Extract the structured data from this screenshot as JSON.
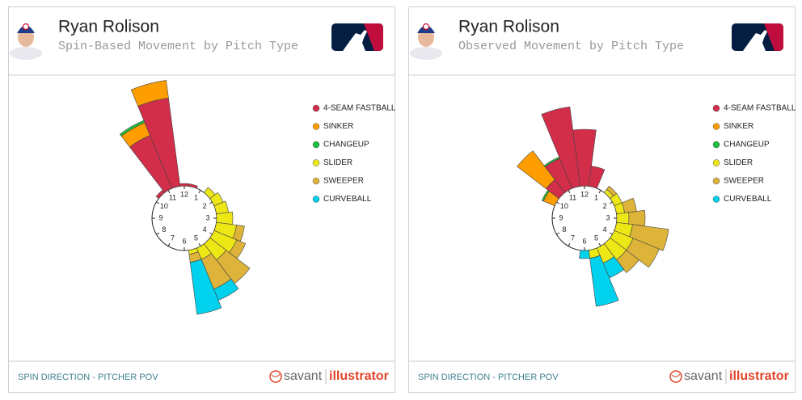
{
  "branding": {
    "savant": "savant",
    "illustrator": "illustrator"
  },
  "chart_data": [
    {
      "type": "polar-bar",
      "title": "Ryan Rolison",
      "subtitle": "Spin-Based Movement by Pitch Type",
      "caption": "SPIN DIRECTION - PITCHER POV",
      "x": [
        10.5,
        11,
        11.5,
        12,
        12.5,
        1.5,
        2,
        2.5,
        3,
        3.5,
        4,
        4.5,
        5,
        5.5
      ],
      "xlim": [
        0,
        12
      ],
      "xticks": [
        12,
        1,
        2,
        3,
        4,
        5,
        6,
        7,
        8,
        9,
        10,
        11
      ],
      "rlim": [
        0,
        140
      ],
      "series": [
        {
          "name": "4-SEAM FASTBALL",
          "color": "#d22d49",
          "values": [
            4,
            71,
            110,
            3,
            3,
            null,
            null,
            null,
            null,
            null,
            null,
            null,
            null,
            null
          ]
        },
        {
          "name": "SINKER",
          "color": "#fe9d00",
          "values": [
            null,
            17,
            22,
            null,
            null,
            null,
            null,
            null,
            null,
            null,
            null,
            null,
            null,
            null
          ]
        },
        {
          "name": "CHANGEUP",
          "color": "#1dbe3a",
          "values": [
            null,
            3,
            null,
            null,
            null,
            null,
            null,
            null,
            null,
            null,
            null,
            null,
            null,
            null
          ]
        },
        {
          "name": "SLIDER",
          "color": "#eee716",
          "values": [
            null,
            null,
            null,
            null,
            null,
            8,
            12,
            15,
            20,
            25,
            30,
            25,
            15,
            5
          ]
        },
        {
          "name": "SWEEPER",
          "color": "#ddb33a",
          "values": [
            null,
            null,
            null,
            null,
            null,
            null,
            null,
            null,
            null,
            10,
            12,
            37,
            40,
            10
          ]
        },
        {
          "name": "CURVEBALL",
          "color": "#00d1ed",
          "values": [
            null,
            null,
            null,
            null,
            null,
            null,
            null,
            null,
            null,
            null,
            null,
            null,
            15,
            65
          ]
        }
      ]
    },
    {
      "type": "polar-bar",
      "title": "Ryan Rolison",
      "subtitle": "Observed Movement by Pitch Type",
      "caption": "SPIN DIRECTION - PITCHER POV",
      "x": [
        10,
        10.5,
        11,
        11.5,
        12,
        12.5,
        1.5,
        2,
        2.5,
        3,
        3.5,
        4,
        4.5,
        5,
        5.5,
        6
      ],
      "xlim": [
        0,
        12
      ],
      "xticks": [
        12,
        1,
        2,
        3,
        4,
        5,
        6,
        7,
        8,
        9,
        10,
        11
      ],
      "rlim": [
        0,
        140
      ],
      "series": [
        {
          "name": "4-SEAM FASTBALL",
          "color": "#d22d49",
          "values": [
            null,
            20,
            40,
            99,
            70,
            25,
            null,
            null,
            null,
            null,
            null,
            null,
            null,
            null,
            null,
            null
          ]
        },
        {
          "name": "SINKER",
          "color": "#fe9d00",
          "values": [
            15,
            45,
            null,
            null,
            null,
            null,
            null,
            null,
            null,
            null,
            null,
            null,
            null,
            null,
            null,
            null
          ]
        },
        {
          "name": "CHANGEUP",
          "color": "#1dbe3a",
          "values": [
            2,
            null,
            2,
            null,
            null,
            null,
            null,
            null,
            null,
            null,
            null,
            null,
            null,
            null,
            null,
            null
          ]
        },
        {
          "name": "SLIDER",
          "color": "#eee716",
          "values": [
            null,
            null,
            null,
            null,
            null,
            null,
            5,
            10,
            10,
            15,
            20,
            25,
            25,
            20,
            10,
            null
          ]
        },
        {
          "name": "SWEEPER",
          "color": "#ddb33a",
          "values": [
            null,
            null,
            null,
            null,
            null,
            null,
            5,
            null,
            15,
            20,
            45,
            35,
            20,
            null,
            null,
            null
          ]
        },
        {
          "name": "CURVEBALL",
          "color": "#00d1ed",
          "values": [
            null,
            null,
            null,
            null,
            null,
            null,
            null,
            null,
            null,
            null,
            null,
            null,
            null,
            20,
            60,
            10
          ]
        }
      ]
    }
  ]
}
